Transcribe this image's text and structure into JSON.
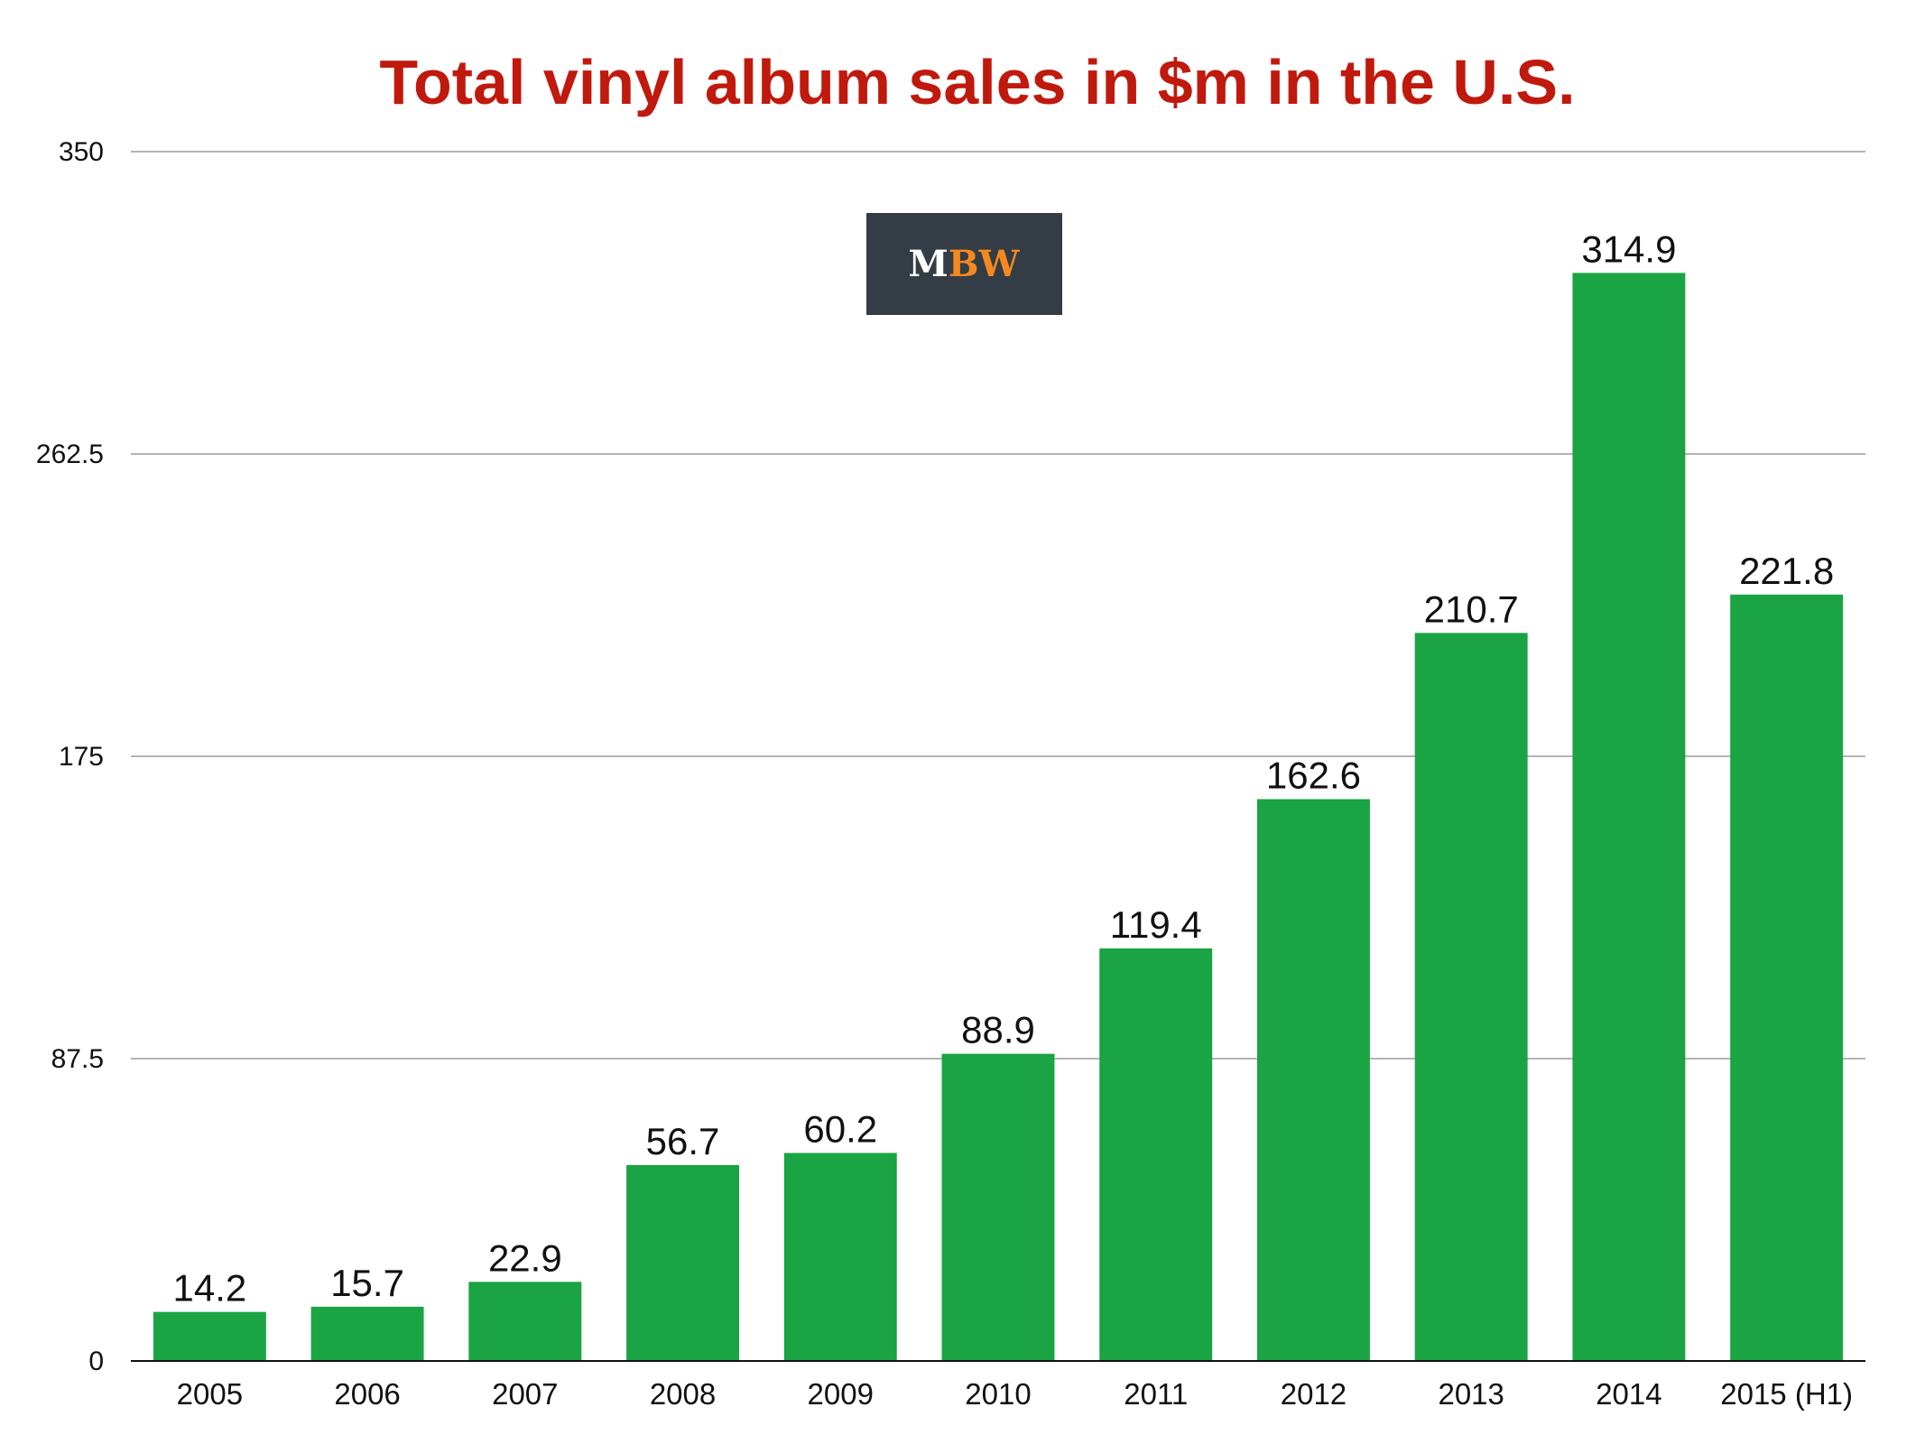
{
  "logo": {
    "letters": [
      "M",
      "B",
      "W"
    ],
    "bg_color": "#343d45",
    "primary_color": "#ffffff",
    "accent_color": "#f5891f"
  },
  "colors": {
    "bar": "#1aa444",
    "title": "#c0190d",
    "grid": "#b4b4b4",
    "axis": "#111111"
  },
  "chart_data": {
    "type": "bar",
    "title": "Total vinyl album sales in $m in the U.S.",
    "xlabel": "",
    "ylabel": "",
    "categories": [
      "2005",
      "2006",
      "2007",
      "2008",
      "2009",
      "2010",
      "2011",
      "2012",
      "2013",
      "2014",
      "2015 (H1)"
    ],
    "values": [
      14.2,
      15.7,
      22.9,
      56.7,
      60.2,
      88.9,
      119.4,
      162.6,
      210.7,
      314.9,
      221.8
    ],
    "value_labels": [
      "14.2",
      "15.7",
      "22.9",
      "56.7",
      "60.2",
      "88.9",
      "119.4",
      "162.6",
      "210.7",
      "314.9",
      "221.8"
    ],
    "ylim": [
      0,
      350
    ],
    "yticks": [
      0,
      87.5,
      175,
      262.5,
      350
    ],
    "ytick_labels": [
      "0",
      "87.5",
      "175",
      "262.5",
      "350"
    ],
    "grid": true,
    "legend": "none"
  }
}
